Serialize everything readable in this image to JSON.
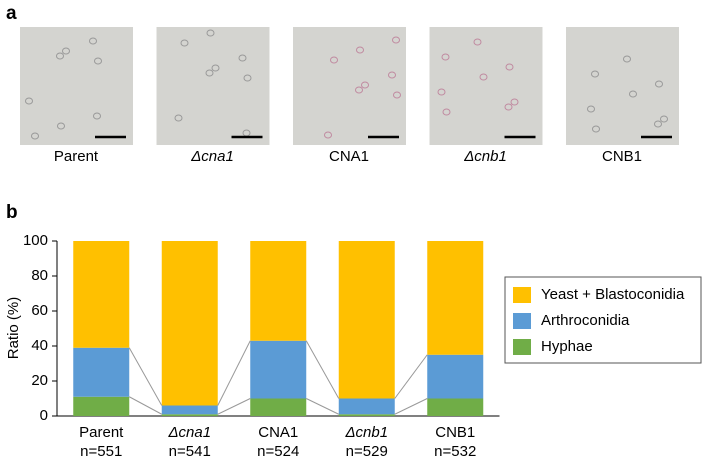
{
  "panel_a": {
    "label": "a",
    "images": [
      "Parent",
      "Δcna1",
      "CNA1",
      "Δcnb1",
      "CNB1"
    ]
  },
  "chart_data": {
    "type": "bar",
    "stacked": true,
    "panel_label": "b",
    "y_label": "Ratio (%)",
    "categories": [
      "Parent",
      "Δcna1",
      "CNA1",
      "Δcnb1",
      "CNB1"
    ],
    "sample_sizes": [
      "n=551",
      "n=541",
      "n=524",
      "n=529",
      "n=532"
    ],
    "series": [
      {
        "name": "Hyphae",
        "color": "#70ad47",
        "values": [
          11,
          1,
          10,
          1,
          10
        ]
      },
      {
        "name": "Arthroconidia",
        "color": "#5b9bd5",
        "values": [
          28,
          5,
          33,
          9,
          25
        ]
      },
      {
        "name": "Yeast + Blastoconidia",
        "color": "#ffc000",
        "values": [
          61,
          94,
          57,
          90,
          65
        ]
      }
    ],
    "ylim": [
      0,
      100
    ],
    "yticks": [
      0,
      20,
      40,
      60,
      80,
      100
    ],
    "grid": false,
    "legend": "right"
  }
}
